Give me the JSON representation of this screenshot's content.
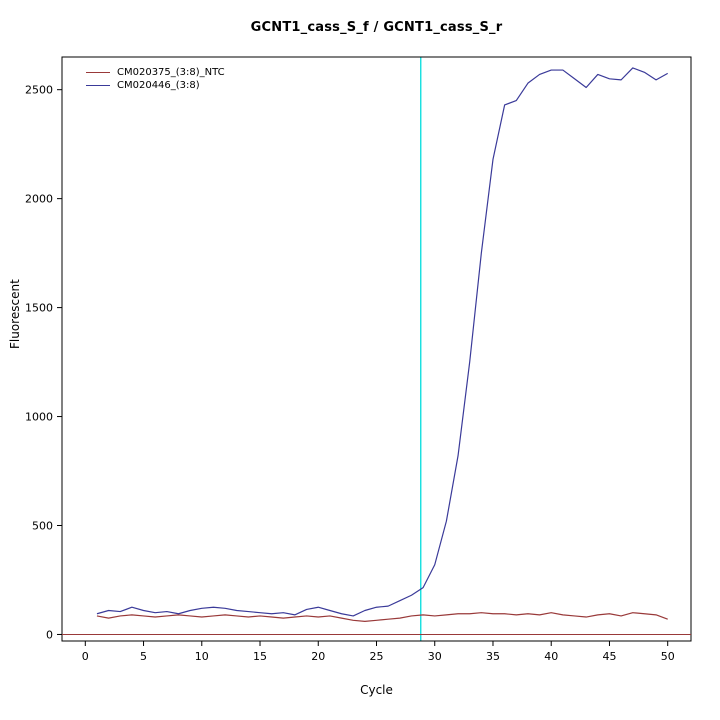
{
  "title": "GCNT1_cass_S_f / GCNT1_cass_S_r",
  "chart_data": {
    "type": "line",
    "title": "GCNT1_cass_S_f / GCNT1_cass_S_r",
    "xlabel": "Cycle",
    "ylabel": "Fluorescent",
    "xlim": [
      -2,
      52
    ],
    "ylim": [
      -30,
      2650
    ],
    "xticks": [
      0,
      5,
      10,
      15,
      20,
      25,
      30,
      35,
      40,
      45,
      50
    ],
    "yticks": [
      0,
      500,
      1000,
      1500,
      2000,
      2500
    ],
    "grid": false,
    "legend_position": "top-left",
    "x": [
      1,
      2,
      3,
      4,
      5,
      6,
      7,
      8,
      9,
      10,
      11,
      12,
      13,
      14,
      15,
      16,
      17,
      18,
      19,
      20,
      21,
      22,
      23,
      24,
      25,
      26,
      27,
      28,
      29,
      30,
      31,
      32,
      33,
      34,
      35,
      36,
      37,
      38,
      39,
      40,
      41,
      42,
      43,
      44,
      45,
      46,
      47,
      48,
      49,
      50
    ],
    "series": [
      {
        "name": "CM020375_(3:8)_NTC",
        "color": "#993939",
        "values": [
          85,
          75,
          85,
          90,
          85,
          80,
          85,
          90,
          85,
          80,
          85,
          90,
          85,
          80,
          85,
          80,
          75,
          80,
          85,
          80,
          85,
          75,
          65,
          60,
          65,
          70,
          75,
          85,
          90,
          85,
          90,
          95,
          95,
          100,
          95,
          95,
          90,
          95,
          90,
          100,
          90,
          85,
          80,
          90,
          95,
          85,
          100,
          95,
          90,
          70
        ]
      },
      {
        "name": "CM020446_(3:8)",
        "color": "#3A3A99",
        "values": [
          95,
          110,
          105,
          125,
          110,
          100,
          105,
          95,
          110,
          120,
          125,
          120,
          110,
          105,
          100,
          95,
          100,
          90,
          115,
          125,
          110,
          95,
          85,
          110,
          125,
          130,
          155,
          180,
          215,
          320,
          520,
          820,
          1250,
          1750,
          2180,
          2430,
          2450,
          2530,
          2570,
          2590,
          2590,
          2550,
          2510,
          2570,
          2550,
          2545,
          2600,
          2580,
          2545,
          2575
        ]
      }
    ],
    "threshold_line": {
      "y": 0,
      "color": "#993939"
    },
    "vline": {
      "x": 28.8,
      "color": "#00DDDD"
    }
  }
}
